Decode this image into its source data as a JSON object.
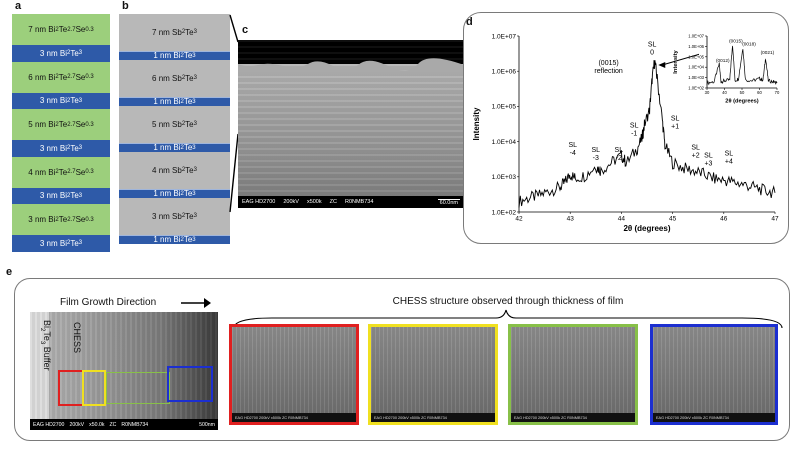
{
  "panel_labels": {
    "a": "a",
    "b": "b",
    "c": "c",
    "d": "d",
    "e": "e"
  },
  "panel_a": {
    "layers": [
      {
        "kind": "green",
        "thick": "7 nm",
        "base": "Bi",
        "s1": "2",
        "mid": "Te",
        "s2": "2.7",
        "tail": "Se",
        "s3": "0.3"
      },
      {
        "kind": "blue",
        "thick": "3 nm",
        "base": "Bi",
        "s1": "2",
        "mid": "Te",
        "s2": "3",
        "tail": "",
        "s3": ""
      },
      {
        "kind": "green",
        "thick": "6 nm",
        "base": "Bi",
        "s1": "2",
        "mid": "Te",
        "s2": "2.7",
        "tail": "Se",
        "s3": "0.3"
      },
      {
        "kind": "blue",
        "thick": "3 nm",
        "base": "Bi",
        "s1": "2",
        "mid": "Te",
        "s2": "3",
        "tail": "",
        "s3": ""
      },
      {
        "kind": "green",
        "thick": "5 nm",
        "base": "Bi",
        "s1": "2",
        "mid": "Te",
        "s2": "2.7",
        "tail": "Se",
        "s3": "0.3"
      },
      {
        "kind": "blue",
        "thick": "3 nm",
        "base": "Bi",
        "s1": "2",
        "mid": "Te",
        "s2": "3",
        "tail": "",
        "s3": ""
      },
      {
        "kind": "green",
        "thick": "4 nm",
        "base": "Bi",
        "s1": "2",
        "mid": "Te",
        "s2": "2.7",
        "tail": "Se",
        "s3": "0.3"
      },
      {
        "kind": "blue",
        "thick": "3 nm",
        "base": "Bi",
        "s1": "2",
        "mid": "Te",
        "s2": "3",
        "tail": "",
        "s3": ""
      },
      {
        "kind": "green",
        "thick": "3 nm",
        "base": "Bi",
        "s1": "2",
        "mid": "Te",
        "s2": "2.7",
        "tail": "Se",
        "s3": "0.3"
      },
      {
        "kind": "blue",
        "thick": "3 nm",
        "base": "Bi",
        "s1": "2",
        "mid": "Te",
        "s2": "3",
        "tail": "",
        "s3": ""
      }
    ]
  },
  "panel_b": {
    "layers": [
      {
        "kind": "grey",
        "thick": "7 nm",
        "base": "Sb",
        "s1": "2",
        "mid": "Te",
        "s2": "3"
      },
      {
        "kind": "blue",
        "thick": "1 nm",
        "base": "Bi",
        "s1": "2",
        "mid": "Te",
        "s2": "3"
      },
      {
        "kind": "grey",
        "thick": "6 nm",
        "base": "Sb",
        "s1": "2",
        "mid": "Te",
        "s2": "3"
      },
      {
        "kind": "blue",
        "thick": "1 nm",
        "base": "Bi",
        "s1": "2",
        "mid": "Te",
        "s2": "3"
      },
      {
        "kind": "grey",
        "thick": "5 nm",
        "base": "Sb",
        "s1": "2",
        "mid": "Te",
        "s2": "3"
      },
      {
        "kind": "blue",
        "thick": "1 nm",
        "base": "Bi",
        "s1": "2",
        "mid": "Te",
        "s2": "3"
      },
      {
        "kind": "grey",
        "thick": "4 nm",
        "base": "Sb",
        "s1": "2",
        "mid": "Te",
        "s2": "3"
      },
      {
        "kind": "blue",
        "thick": "1 nm",
        "base": "Bi",
        "s1": "2",
        "mid": "Te",
        "s2": "3"
      },
      {
        "kind": "grey",
        "thick": "3 nm",
        "base": "Sb",
        "s1": "2",
        "mid": "Te",
        "s2": "3"
      },
      {
        "kind": "blue",
        "thick": "1 nm",
        "base": "Bi",
        "s1": "2",
        "mid": "Te",
        "s2": "3"
      }
    ]
  },
  "panel_c": {
    "caption": [
      "EAG HD2700",
      "200kV",
      "x500k",
      "ZC",
      "R0NMB734"
    ],
    "scale": "60.0nm"
  },
  "chart_data": [
    {
      "type": "line",
      "title": "",
      "xlabel": "2θ (degrees)",
      "ylabel": "Intensity",
      "xlim": [
        42,
        47
      ],
      "ylim": [
        100,
        10000000
      ],
      "yscale": "log",
      "x_ticks": [
        "42",
        "43",
        "44",
        "45",
        "46",
        "47"
      ],
      "y_ticks": [
        "1.0E+02",
        "1.0E+03",
        "1.0E+04",
        "1.0E+05",
        "1.0E+06",
        "1.0E+07"
      ],
      "grid": false,
      "series": [
        {
          "values": [
            [
              42.0,
              200
            ],
            [
              42.2,
              250
            ],
            [
              42.4,
              300
            ],
            [
              42.6,
              400
            ],
            [
              42.8,
              500
            ],
            [
              42.9,
              700
            ],
            [
              43.0,
              1200
            ],
            [
              43.1,
              900
            ],
            [
              43.3,
              1100
            ],
            [
              43.5,
              2000
            ],
            [
              43.6,
              1500
            ],
            [
              43.8,
              2500
            ],
            [
              44.0,
              4000
            ],
            [
              44.1,
              2500
            ],
            [
              44.3,
              6000
            ],
            [
              44.4,
              12000
            ],
            [
              44.45,
              30000
            ],
            [
              44.55,
              80000
            ],
            [
              44.6,
              600000
            ],
            [
              44.65,
              2000000
            ],
            [
              44.7,
              600000
            ],
            [
              44.8,
              40000
            ],
            [
              44.85,
              8000
            ],
            [
              45.0,
              2500
            ],
            [
              45.2,
              1800
            ],
            [
              45.4,
              1500
            ],
            [
              45.6,
              1200
            ],
            [
              45.8,
              900
            ],
            [
              46.0,
              800
            ],
            [
              46.2,
              700
            ],
            [
              46.4,
              600
            ],
            [
              46.6,
              500
            ],
            [
              46.8,
              400
            ],
            [
              47.0,
              350
            ]
          ]
        }
      ],
      "annotations": [
        {
          "text": [
            "(0015)",
            "reflection"
          ],
          "x": 43.75,
          "y": 1500000
        },
        {
          "text": [
            "SL",
            "0"
          ],
          "x": 44.6,
          "y": 5000000
        },
        {
          "text": [
            "SL",
            "-1"
          ],
          "x": 44.25,
          "y": 25000
        },
        {
          "text": [
            "SL",
            "-2"
          ],
          "x": 43.95,
          "y": 5000
        },
        {
          "text": [
            "SL",
            "-3"
          ],
          "x": 43.5,
          "y": 5000
        },
        {
          "text": [
            "SL",
            "-4"
          ],
          "x": 43.05,
          "y": 7000
        },
        {
          "text": [
            "SL",
            "+1"
          ],
          "x": 45.05,
          "y": 40000
        },
        {
          "text": [
            "SL",
            "+2"
          ],
          "x": 45.45,
          "y": 6000
        },
        {
          "text": [
            "SL",
            "+3"
          ],
          "x": 45.7,
          "y": 3500
        },
        {
          "text": [
            "SL",
            "+4"
          ],
          "x": 46.1,
          "y": 4000
        }
      ]
    },
    {
      "type": "line",
      "title": "",
      "xlabel": "2θ (degrees)",
      "ylabel": "Intensity",
      "xlim": [
        30,
        70
      ],
      "ylim": [
        100,
        10000000
      ],
      "yscale": "log",
      "x_ticks": [
        "30",
        "40",
        "50",
        "60",
        "70"
      ],
      "y_ticks": [
        "1.0E+02",
        "1.0E+03",
        "1.0E+04",
        "1.0E+05",
        "1.0E+06",
        "1.0E+07"
      ],
      "grid": false,
      "series": [
        {
          "values": [
            [
              30,
              300
            ],
            [
              34,
              400
            ],
            [
              37,
              20000
            ],
            [
              38,
              400
            ],
            [
              40,
              500
            ],
            [
              43,
              600
            ],
            [
              44.6,
              1500000
            ],
            [
              46,
              500
            ],
            [
              48,
              800
            ],
            [
              50.5,
              700000
            ],
            [
              52,
              600
            ],
            [
              56,
              500
            ],
            [
              60,
              800
            ],
            [
              62,
              600
            ],
            [
              63.5,
              80000
            ],
            [
              65,
              500
            ],
            [
              68,
              400
            ],
            [
              70,
              300
            ]
          ]
        }
      ],
      "annotations": [
        {
          "text": [
            "(0012)"
          ],
          "x": 39,
          "y": 30000
        },
        {
          "text": [
            "(0015)"
          ],
          "x": 46.5,
          "y": 2500000
        },
        {
          "text": [
            "(0018)"
          ],
          "x": 54,
          "y": 1200000
        },
        {
          "text": [
            "(0021)"
          ],
          "x": 64.5,
          "y": 180000
        }
      ]
    }
  ],
  "panel_e": {
    "growth_label": "Film Growth Direction",
    "chess_label": "CHESS",
    "buffer_base": "Bi",
    "buffer_s1": "2",
    "buffer_mid": "Te",
    "buffer_s2": "3",
    "buffer_tail": " Buffer",
    "structure_label": "CHESS structure observed through thickness of film",
    "caption": [
      "EAG HD2700",
      "200kV",
      "x50.0k",
      "ZC",
      "R0NMB734"
    ],
    "scale": "500nm",
    "box_colors": [
      "#e02020",
      "#f0e020",
      "#88c048",
      "#1c2fd0"
    ],
    "micro_captions": [
      "EAG HD2700 200kV x500k ZC  R0NMB734",
      "EAG HD2700 200kV x500k ZC  R0NMB734",
      "EAG HD2700 200kV x500k ZC  R0NMB734",
      "EAG HD2700 200kV x500k ZC  R0NMB734"
    ]
  }
}
